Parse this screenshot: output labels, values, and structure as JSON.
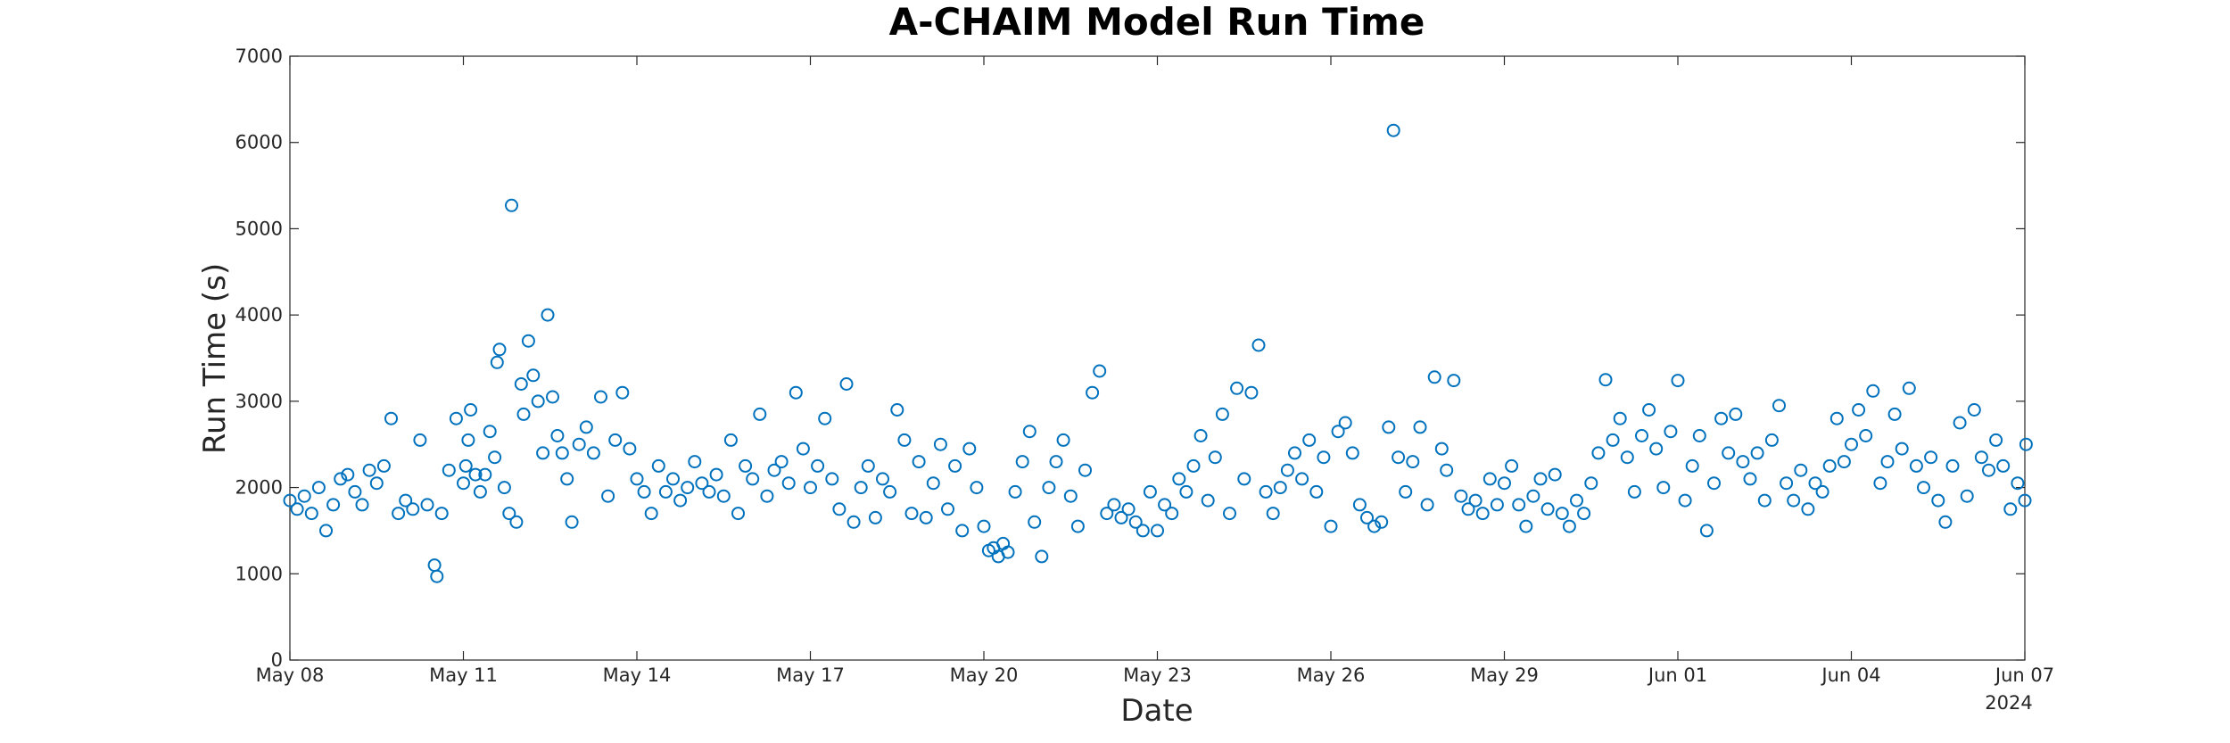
{
  "chart_data": {
    "type": "scatter",
    "title": "A-CHAIM Model Run Time",
    "xlabel": "Date",
    "ylabel": "Run Time (s)",
    "x_axis": {
      "type": "date",
      "range": [
        "2024-05-08",
        "2024-06-07"
      ],
      "tick_labels": [
        "May 08",
        "May 11",
        "May 14",
        "May 17",
        "May 20",
        "May 23",
        "May 26",
        "May 29",
        "Jun 01",
        "Jun 04",
        "Jun 07"
      ],
      "secondary_label": "2024"
    },
    "y_axis": {
      "range": [
        0,
        7000
      ],
      "ticks": [
        "0",
        "1000",
        "2000",
        "3000",
        "4000",
        "5000",
        "6000",
        "7000"
      ]
    },
    "grid": false,
    "legend": "none",
    "marker": "open-circle",
    "series_color": "#0072BD",
    "series": [
      {
        "points": [
          [
            "2024-05-08 00:00",
            1850
          ],
          [
            "2024-05-08 03:00",
            1750
          ],
          [
            "2024-05-08 06:00",
            1900
          ],
          [
            "2024-05-08 09:00",
            1700
          ],
          [
            "2024-05-08 12:00",
            2000
          ],
          [
            "2024-05-08 15:00",
            1500
          ],
          [
            "2024-05-08 18:00",
            1800
          ],
          [
            "2024-05-08 21:00",
            2100
          ],
          [
            "2024-05-09 00:00",
            2150
          ],
          [
            "2024-05-09 03:00",
            1950
          ],
          [
            "2024-05-09 06:00",
            1800
          ],
          [
            "2024-05-09 09:00",
            2200
          ],
          [
            "2024-05-09 12:00",
            2050
          ],
          [
            "2024-05-09 15:00",
            2250
          ],
          [
            "2024-05-09 18:00",
            2800
          ],
          [
            "2024-05-09 21:00",
            1700
          ],
          [
            "2024-05-10 00:00",
            1850
          ],
          [
            "2024-05-10 03:00",
            1750
          ],
          [
            "2024-05-10 06:00",
            2550
          ],
          [
            "2024-05-10 09:00",
            1800
          ],
          [
            "2024-05-10 12:00",
            1100
          ],
          [
            "2024-05-10 13:00",
            970
          ],
          [
            "2024-05-10 15:00",
            1700
          ],
          [
            "2024-05-10 18:00",
            2200
          ],
          [
            "2024-05-10 21:00",
            2800
          ],
          [
            "2024-05-11 00:00",
            2050
          ],
          [
            "2024-05-11 01:00",
            2250
          ],
          [
            "2024-05-11 02:00",
            2550
          ],
          [
            "2024-05-11 03:00",
            2900
          ],
          [
            "2024-05-11 05:00",
            2150
          ],
          [
            "2024-05-11 07:00",
            1950
          ],
          [
            "2024-05-11 09:00",
            2150
          ],
          [
            "2024-05-11 11:00",
            2650
          ],
          [
            "2024-05-11 13:00",
            2350
          ],
          [
            "2024-05-11 14:00",
            3450
          ],
          [
            "2024-05-11 15:00",
            3600
          ],
          [
            "2024-05-11 17:00",
            2000
          ],
          [
            "2024-05-11 19:00",
            1700
          ],
          [
            "2024-05-11 20:00",
            5270
          ],
          [
            "2024-05-11 22:00",
            1600
          ],
          [
            "2024-05-12 00:00",
            3200
          ],
          [
            "2024-05-12 01:00",
            2850
          ],
          [
            "2024-05-12 03:00",
            3700
          ],
          [
            "2024-05-12 05:00",
            3300
          ],
          [
            "2024-05-12 07:00",
            3000
          ],
          [
            "2024-05-12 09:00",
            2400
          ],
          [
            "2024-05-12 11:00",
            4000
          ],
          [
            "2024-05-12 13:00",
            3050
          ],
          [
            "2024-05-12 15:00",
            2600
          ],
          [
            "2024-05-12 17:00",
            2400
          ],
          [
            "2024-05-12 19:00",
            2100
          ],
          [
            "2024-05-12 21:00",
            1600
          ],
          [
            "2024-05-13 00:00",
            2500
          ],
          [
            "2024-05-13 03:00",
            2700
          ],
          [
            "2024-05-13 06:00",
            2400
          ],
          [
            "2024-05-13 09:00",
            3050
          ],
          [
            "2024-05-13 12:00",
            1900
          ],
          [
            "2024-05-13 15:00",
            2550
          ],
          [
            "2024-05-13 18:00",
            3100
          ],
          [
            "2024-05-13 21:00",
            2450
          ],
          [
            "2024-05-14 00:00",
            2100
          ],
          [
            "2024-05-14 03:00",
            1950
          ],
          [
            "2024-05-14 06:00",
            1700
          ],
          [
            "2024-05-14 09:00",
            2250
          ],
          [
            "2024-05-14 12:00",
            1950
          ],
          [
            "2024-05-14 15:00",
            2100
          ],
          [
            "2024-05-14 18:00",
            1850
          ],
          [
            "2024-05-14 21:00",
            2000
          ],
          [
            "2024-05-15 00:00",
            2300
          ],
          [
            "2024-05-15 03:00",
            2050
          ],
          [
            "2024-05-15 06:00",
            1950
          ],
          [
            "2024-05-15 09:00",
            2150
          ],
          [
            "2024-05-15 12:00",
            1900
          ],
          [
            "2024-05-15 15:00",
            2550
          ],
          [
            "2024-05-15 18:00",
            1700
          ],
          [
            "2024-05-15 21:00",
            2250
          ],
          [
            "2024-05-16 00:00",
            2100
          ],
          [
            "2024-05-16 03:00",
            2850
          ],
          [
            "2024-05-16 06:00",
            1900
          ],
          [
            "2024-05-16 09:00",
            2200
          ],
          [
            "2024-05-16 12:00",
            2300
          ],
          [
            "2024-05-16 15:00",
            2050
          ],
          [
            "2024-05-16 18:00",
            3100
          ],
          [
            "2024-05-16 21:00",
            2450
          ],
          [
            "2024-05-17 00:00",
            2000
          ],
          [
            "2024-05-17 03:00",
            2250
          ],
          [
            "2024-05-17 06:00",
            2800
          ],
          [
            "2024-05-17 09:00",
            2100
          ],
          [
            "2024-05-17 12:00",
            1750
          ],
          [
            "2024-05-17 15:00",
            3200
          ],
          [
            "2024-05-17 18:00",
            1600
          ],
          [
            "2024-05-17 21:00",
            2000
          ],
          [
            "2024-05-18 00:00",
            2250
          ],
          [
            "2024-05-18 03:00",
            1650
          ],
          [
            "2024-05-18 06:00",
            2100
          ],
          [
            "2024-05-18 09:00",
            1950
          ],
          [
            "2024-05-18 12:00",
            2900
          ],
          [
            "2024-05-18 15:00",
            2550
          ],
          [
            "2024-05-18 18:00",
            1700
          ],
          [
            "2024-05-18 21:00",
            2300
          ],
          [
            "2024-05-19 00:00",
            1650
          ],
          [
            "2024-05-19 03:00",
            2050
          ],
          [
            "2024-05-19 06:00",
            2500
          ],
          [
            "2024-05-19 09:00",
            1750
          ],
          [
            "2024-05-19 12:00",
            2250
          ],
          [
            "2024-05-19 15:00",
            1500
          ],
          [
            "2024-05-19 18:00",
            2450
          ],
          [
            "2024-05-19 21:00",
            2000
          ],
          [
            "2024-05-20 00:00",
            1550
          ],
          [
            "2024-05-20 02:00",
            1270
          ],
          [
            "2024-05-20 04:00",
            1300
          ],
          [
            "2024-05-20 06:00",
            1200
          ],
          [
            "2024-05-20 08:00",
            1350
          ],
          [
            "2024-05-20 10:00",
            1250
          ],
          [
            "2024-05-20 13:00",
            1950
          ],
          [
            "2024-05-20 16:00",
            2300
          ],
          [
            "2024-05-20 19:00",
            2650
          ],
          [
            "2024-05-20 21:00",
            1600
          ],
          [
            "2024-05-21 00:00",
            1200
          ],
          [
            "2024-05-21 03:00",
            2000
          ],
          [
            "2024-05-21 06:00",
            2300
          ],
          [
            "2024-05-21 09:00",
            2550
          ],
          [
            "2024-05-21 12:00",
            1900
          ],
          [
            "2024-05-21 15:00",
            1550
          ],
          [
            "2024-05-21 18:00",
            2200
          ],
          [
            "2024-05-21 21:00",
            3100
          ],
          [
            "2024-05-22 00:00",
            3350
          ],
          [
            "2024-05-22 03:00",
            1700
          ],
          [
            "2024-05-22 06:00",
            1800
          ],
          [
            "2024-05-22 09:00",
            1650
          ],
          [
            "2024-05-22 12:00",
            1750
          ],
          [
            "2024-05-22 15:00",
            1600
          ],
          [
            "2024-05-22 18:00",
            1500
          ],
          [
            "2024-05-22 21:00",
            1950
          ],
          [
            "2024-05-23 00:00",
            1500
          ],
          [
            "2024-05-23 03:00",
            1800
          ],
          [
            "2024-05-23 06:00",
            1700
          ],
          [
            "2024-05-23 09:00",
            2100
          ],
          [
            "2024-05-23 12:00",
            1950
          ],
          [
            "2024-05-23 15:00",
            2250
          ],
          [
            "2024-05-23 18:00",
            2600
          ],
          [
            "2024-05-23 21:00",
            1850
          ],
          [
            "2024-05-24 00:00",
            2350
          ],
          [
            "2024-05-24 03:00",
            2850
          ],
          [
            "2024-05-24 06:00",
            1700
          ],
          [
            "2024-05-24 09:00",
            3150
          ],
          [
            "2024-05-24 12:00",
            2100
          ],
          [
            "2024-05-24 15:00",
            3100
          ],
          [
            "2024-05-24 18:00",
            3650
          ],
          [
            "2024-05-24 21:00",
            1950
          ],
          [
            "2024-05-25 00:00",
            1700
          ],
          [
            "2024-05-25 03:00",
            2000
          ],
          [
            "2024-05-25 06:00",
            2200
          ],
          [
            "2024-05-25 09:00",
            2400
          ],
          [
            "2024-05-25 12:00",
            2100
          ],
          [
            "2024-05-25 15:00",
            2550
          ],
          [
            "2024-05-25 18:00",
            1950
          ],
          [
            "2024-05-25 21:00",
            2350
          ],
          [
            "2024-05-26 00:00",
            1550
          ],
          [
            "2024-05-26 03:00",
            2650
          ],
          [
            "2024-05-26 06:00",
            2750
          ],
          [
            "2024-05-26 09:00",
            2400
          ],
          [
            "2024-05-26 12:00",
            1800
          ],
          [
            "2024-05-26 15:00",
            1650
          ],
          [
            "2024-05-26 18:00",
            1550
          ],
          [
            "2024-05-26 21:00",
            1600
          ],
          [
            "2024-05-27 00:00",
            2700
          ],
          [
            "2024-05-27 02:00",
            6140
          ],
          [
            "2024-05-27 04:00",
            2350
          ],
          [
            "2024-05-27 07:00",
            1950
          ],
          [
            "2024-05-27 10:00",
            2300
          ],
          [
            "2024-05-27 13:00",
            2700
          ],
          [
            "2024-05-27 16:00",
            1800
          ],
          [
            "2024-05-27 19:00",
            3280
          ],
          [
            "2024-05-27 22:00",
            2450
          ],
          [
            "2024-05-28 00:00",
            2200
          ],
          [
            "2024-05-28 03:00",
            3240
          ],
          [
            "2024-05-28 06:00",
            1900
          ],
          [
            "2024-05-28 09:00",
            1750
          ],
          [
            "2024-05-28 12:00",
            1850
          ],
          [
            "2024-05-28 15:00",
            1700
          ],
          [
            "2024-05-28 18:00",
            2100
          ],
          [
            "2024-05-28 21:00",
            1800
          ],
          [
            "2024-05-29 00:00",
            2050
          ],
          [
            "2024-05-29 03:00",
            2250
          ],
          [
            "2024-05-29 06:00",
            1800
          ],
          [
            "2024-05-29 09:00",
            1550
          ],
          [
            "2024-05-29 12:00",
            1900
          ],
          [
            "2024-05-29 15:00",
            2100
          ],
          [
            "2024-05-29 18:00",
            1750
          ],
          [
            "2024-05-29 21:00",
            2150
          ],
          [
            "2024-05-30 00:00",
            1700
          ],
          [
            "2024-05-30 03:00",
            1550
          ],
          [
            "2024-05-30 06:00",
            1850
          ],
          [
            "2024-05-30 09:00",
            1700
          ],
          [
            "2024-05-30 12:00",
            2050
          ],
          [
            "2024-05-30 15:00",
            2400
          ],
          [
            "2024-05-30 18:00",
            3250
          ],
          [
            "2024-05-30 21:00",
            2550
          ],
          [
            "2024-05-31 00:00",
            2800
          ],
          [
            "2024-05-31 03:00",
            2350
          ],
          [
            "2024-05-31 06:00",
            1950
          ],
          [
            "2024-05-31 09:00",
            2600
          ],
          [
            "2024-05-31 12:00",
            2900
          ],
          [
            "2024-05-31 15:00",
            2450
          ],
          [
            "2024-05-31 18:00",
            2000
          ],
          [
            "2024-05-31 21:00",
            2650
          ],
          [
            "2024-06-01 00:00",
            3240
          ],
          [
            "2024-06-01 03:00",
            1850
          ],
          [
            "2024-06-01 06:00",
            2250
          ],
          [
            "2024-06-01 09:00",
            2600
          ],
          [
            "2024-06-01 12:00",
            1500
          ],
          [
            "2024-06-01 15:00",
            2050
          ],
          [
            "2024-06-01 18:00",
            2800
          ],
          [
            "2024-06-01 21:00",
            2400
          ],
          [
            "2024-06-02 00:00",
            2850
          ],
          [
            "2024-06-02 03:00",
            2300
          ],
          [
            "2024-06-02 06:00",
            2100
          ],
          [
            "2024-06-02 09:00",
            2400
          ],
          [
            "2024-06-02 12:00",
            1850
          ],
          [
            "2024-06-02 15:00",
            2550
          ],
          [
            "2024-06-02 18:00",
            2950
          ],
          [
            "2024-06-02 21:00",
            2050
          ],
          [
            "2024-06-03 00:00",
            1850
          ],
          [
            "2024-06-03 03:00",
            2200
          ],
          [
            "2024-06-03 06:00",
            1750
          ],
          [
            "2024-06-03 09:00",
            2050
          ],
          [
            "2024-06-03 12:00",
            1950
          ],
          [
            "2024-06-03 15:00",
            2250
          ],
          [
            "2024-06-03 18:00",
            2800
          ],
          [
            "2024-06-03 21:00",
            2300
          ],
          [
            "2024-06-04 00:00",
            2500
          ],
          [
            "2024-06-04 03:00",
            2900
          ],
          [
            "2024-06-04 06:00",
            2600
          ],
          [
            "2024-06-04 09:00",
            3120
          ],
          [
            "2024-06-04 12:00",
            2050
          ],
          [
            "2024-06-04 15:00",
            2300
          ],
          [
            "2024-06-04 18:00",
            2850
          ],
          [
            "2024-06-04 21:00",
            2450
          ],
          [
            "2024-06-05 00:00",
            3150
          ],
          [
            "2024-06-05 03:00",
            2250
          ],
          [
            "2024-06-05 06:00",
            2000
          ],
          [
            "2024-06-05 09:00",
            2350
          ],
          [
            "2024-06-05 12:00",
            1850
          ],
          [
            "2024-06-05 15:00",
            1600
          ],
          [
            "2024-06-05 18:00",
            2250
          ],
          [
            "2024-06-05 21:00",
            2750
          ],
          [
            "2024-06-06 00:00",
            1900
          ],
          [
            "2024-06-06 03:00",
            2900
          ],
          [
            "2024-06-06 06:00",
            2350
          ],
          [
            "2024-06-06 09:00",
            2200
          ],
          [
            "2024-06-06 12:00",
            2550
          ],
          [
            "2024-06-06 15:00",
            2250
          ],
          [
            "2024-06-06 18:00",
            1750
          ],
          [
            "2024-06-06 21:00",
            2050
          ],
          [
            "2024-06-07 00:00",
            1850
          ],
          [
            "2024-06-07 00:30",
            2500
          ]
        ]
      }
    ]
  }
}
